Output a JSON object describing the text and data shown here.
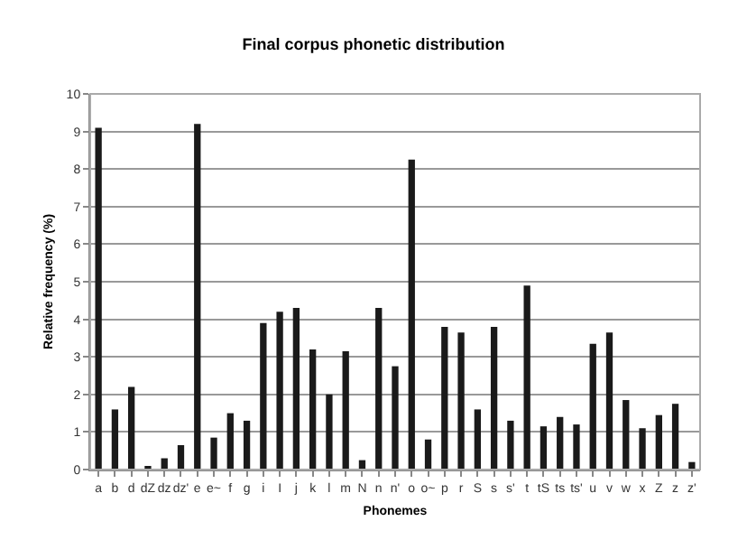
{
  "chart_data": {
    "type": "bar",
    "title": "Final corpus phonetic distribution",
    "xlabel": "Phonemes",
    "ylabel": "Relative frequency (%)",
    "categories": [
      "a",
      "b",
      "d",
      "dZ",
      "dz",
      "dz'",
      "e",
      "e~",
      "f",
      "g",
      "i",
      "I",
      "j",
      "k",
      "l",
      "m",
      "N",
      "n",
      "n'",
      "o",
      "o~",
      "p",
      "r",
      "S",
      "s",
      "s'",
      "t",
      "tS",
      "ts",
      "ts'",
      "u",
      "v",
      "w",
      "x",
      "Z",
      "z",
      "z'"
    ],
    "values": [
      9.1,
      1.6,
      2.2,
      0.05,
      0.3,
      0.65,
      9.2,
      0.85,
      1.5,
      1.3,
      3.9,
      4.2,
      4.3,
      3.2,
      2.0,
      3.15,
      0.25,
      4.3,
      2.75,
      8.25,
      0.8,
      3.8,
      3.65,
      1.6,
      3.8,
      1.3,
      4.9,
      1.15,
      1.4,
      1.2,
      3.35,
      3.65,
      1.85,
      1.1,
      1.45,
      1.75,
      0.2
    ],
    "color": "#1a1a1a",
    "ylim": [
      0,
      10
    ],
    "yticks": [
      0,
      1,
      2,
      3,
      4,
      5,
      6,
      7,
      8,
      9,
      10
    ],
    "grid": "y"
  }
}
